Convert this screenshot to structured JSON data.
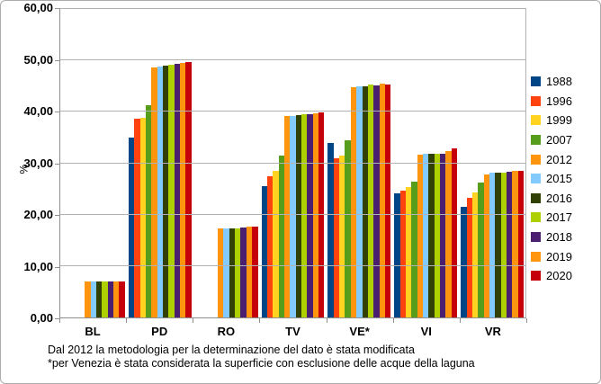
{
  "chart_data": {
    "type": "bar",
    "title": "",
    "xlabel": "",
    "ylabel": "%",
    "categories": [
      "BL",
      "PD",
      "RO",
      "TV",
      "VE*",
      "VI",
      "VR"
    ],
    "series": [
      {
        "name": "1988",
        "color": "#004586",
        "values": [
          null,
          35.0,
          null,
          25.6,
          34.0,
          24.2,
          21.5
        ]
      },
      {
        "name": "1996",
        "color": "#FF420E",
        "values": [
          null,
          38.7,
          null,
          27.5,
          31.0,
          24.7,
          23.3
        ]
      },
      {
        "name": "1999",
        "color": "#FFD320",
        "values": [
          null,
          38.9,
          null,
          28.5,
          31.5,
          25.4,
          24.3
        ]
      },
      {
        "name": "2007",
        "color": "#579D1C",
        "values": [
          null,
          41.3,
          null,
          31.5,
          34.4,
          26.5,
          26.2
        ]
      },
      {
        "name": "2012",
        "color": "#FF950E",
        "values": [
          7.0,
          48.7,
          17.3,
          39.2,
          44.8,
          31.6,
          27.9
        ]
      },
      {
        "name": "2015",
        "color": "#83CAFF",
        "values": [
          7.0,
          48.8,
          17.4,
          39.1,
          45.0,
          31.8,
          28.1
        ]
      },
      {
        "name": "2016",
        "color": "#314004",
        "values": [
          7.0,
          49.0,
          17.4,
          39.3,
          45.0,
          31.9,
          28.1
        ]
      },
      {
        "name": "2017",
        "color": "#AECF00",
        "values": [
          7.0,
          49.1,
          17.4,
          39.5,
          45.3,
          31.9,
          28.2
        ]
      },
      {
        "name": "2018",
        "color": "#4B1F6F",
        "values": [
          7.0,
          49.3,
          17.5,
          39.6,
          45.2,
          31.9,
          28.4
        ]
      },
      {
        "name": "2019",
        "color": "#FF950E",
        "values": [
          7.0,
          49.5,
          17.6,
          39.7,
          45.4,
          32.4,
          28.5
        ]
      },
      {
        "name": "2020",
        "color": "#C5000B",
        "values": [
          7.0,
          49.6,
          17.7,
          39.8,
          45.3,
          32.9,
          28.5
        ]
      }
    ],
    "ylim": [
      0,
      60
    ],
    "ytick_step": 10,
    "ytick_labels": [
      "0,00",
      "10,00",
      "20,00",
      "30,00",
      "40,00",
      "50,00",
      "60,00"
    ],
    "grid": true,
    "legend_position": "right"
  },
  "footnotes": {
    "line1": "Dal 2012 la metodologia per la determinazione del dato è stata modificata",
    "line2": "*per Venezia è stata considerata la superficie con esclusione delle acque della laguna"
  }
}
